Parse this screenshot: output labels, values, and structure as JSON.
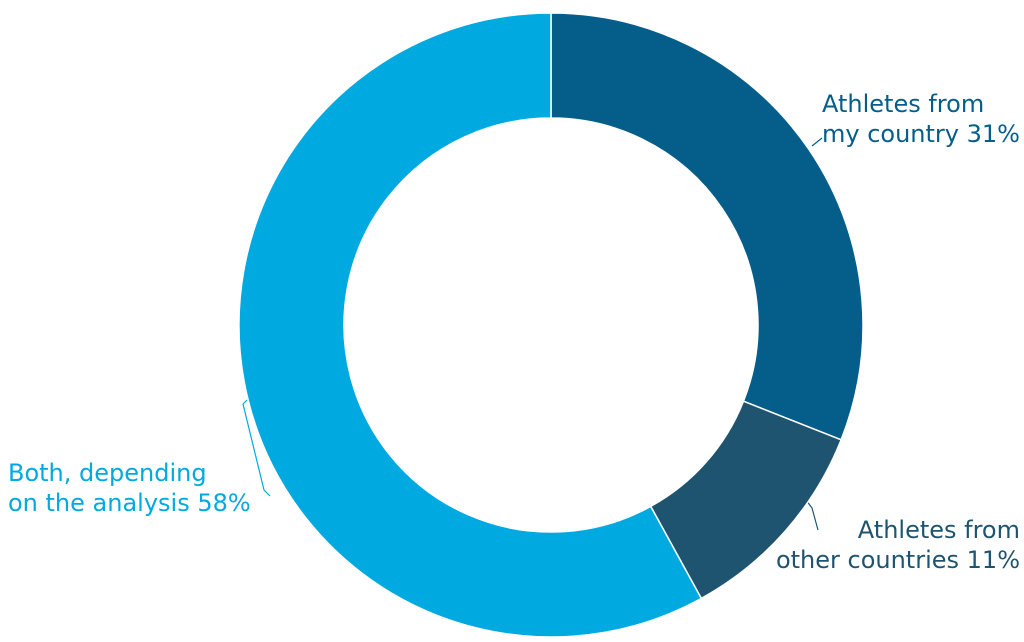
{
  "chart_data": {
    "type": "donut",
    "categories": [
      "Athletes from my country",
      "Athletes from other countries",
      "Both, depending on the analysis"
    ],
    "values": [
      31,
      11,
      58
    ],
    "value_labels": [
      "31%",
      "11%",
      "58%"
    ],
    "colors": [
      "#055e8a",
      "#1f5470",
      "#00a9e0"
    ]
  }
}
